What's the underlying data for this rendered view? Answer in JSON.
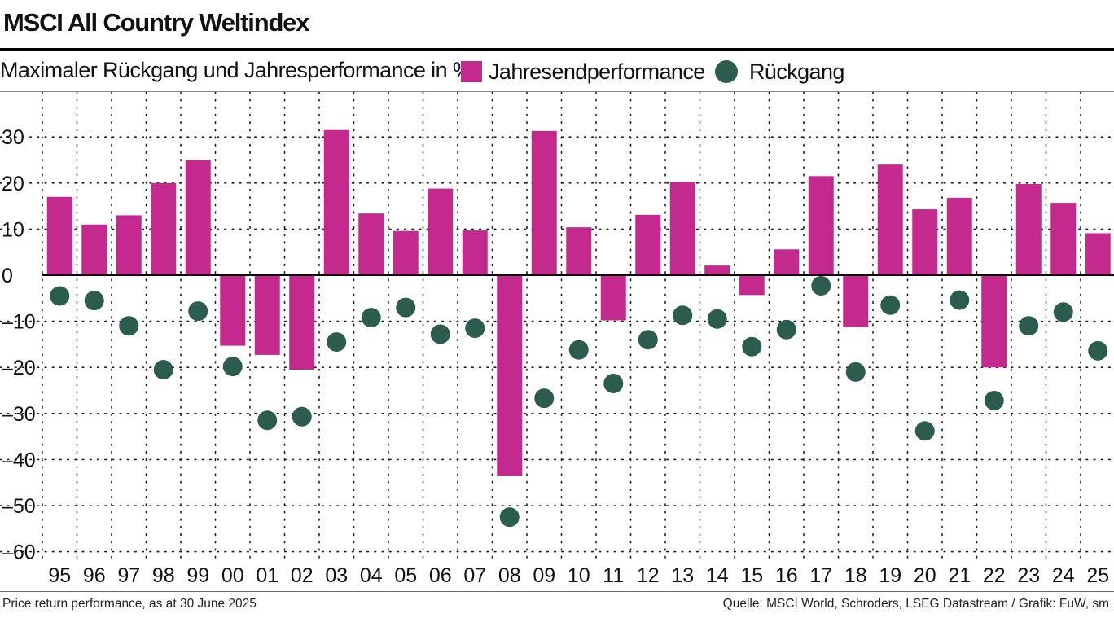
{
  "title": "MSCI All Country Weltindex",
  "subtitle": "Maximaler Rückgang und Jahresperformance in %:",
  "legend": [
    {
      "label": "Jahresendperformance",
      "color": "#c42a8d",
      "shape": "square"
    },
    {
      "label": "Rückgang",
      "color": "#2b5c4e",
      "shape": "circle"
    }
  ],
  "footnote": "Price return performance, as at 30 June 2025",
  "source": "Quelle: MSCI World, Schroders, LSEG Datastream / Grafik: FuW, sm",
  "chart_data": {
    "type": "bar",
    "title": "MSCI All Country Weltindex",
    "xlabel": "",
    "ylabel": "",
    "ylim": [
      -60,
      35
    ],
    "yticks": [
      30,
      20,
      10,
      0,
      -10,
      -20,
      -30,
      -40,
      -50,
      -60
    ],
    "ytick_labels": [
      "30",
      "20",
      "10",
      "0",
      "–10",
      "–20",
      "–30",
      "–40",
      "–50",
      "–60"
    ],
    "grid": true,
    "legend_position": "top",
    "categories": [
      "95",
      "96",
      "97",
      "98",
      "99",
      "00",
      "01",
      "02",
      "03",
      "04",
      "05",
      "06",
      "07",
      "08",
      "09",
      "10",
      "11",
      "12",
      "13",
      "14",
      "15",
      "16",
      "17",
      "18",
      "19",
      "20",
      "21",
      "22",
      "23",
      "24",
      "25"
    ],
    "series": [
      {
        "name": "Jahresendperformance",
        "type": "bar",
        "color": "#c42a8d",
        "values": [
          17,
          11,
          13,
          20,
          25,
          -15.3,
          -17.3,
          -20.5,
          31.5,
          13.4,
          9.6,
          18.8,
          9.7,
          -43.5,
          31.3,
          10.4,
          -9.8,
          13.1,
          20.2,
          2.1,
          -4.3,
          5.6,
          21.5,
          -11.2,
          24,
          14.3,
          16.8,
          -20,
          19.8,
          15.7,
          9.1
        ]
      },
      {
        "name": "Rückgang",
        "type": "scatter",
        "color": "#2b5c4e",
        "values": [
          -4.5,
          -5.5,
          -11,
          -20.5,
          -7.8,
          -19.8,
          -31.5,
          -30.7,
          -14.5,
          -9.2,
          -7,
          -12.8,
          -11.5,
          -52.5,
          -26.7,
          -16.2,
          -23.5,
          -14,
          -8.7,
          -9.5,
          -15.5,
          -11.8,
          -2.3,
          -21,
          -6.5,
          -33.8,
          -5.4,
          -27.2,
          -11,
          -8,
          -16.4
        ]
      }
    ]
  }
}
